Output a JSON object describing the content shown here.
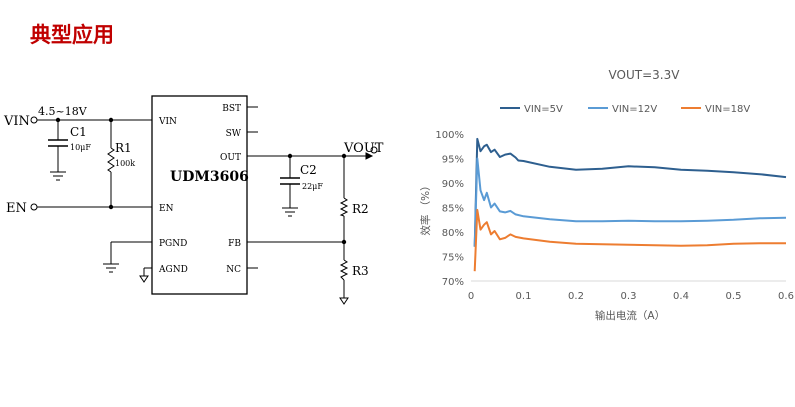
{
  "page": {
    "title": "典型应用"
  },
  "schematic": {
    "ports": {
      "vin": "VIN",
      "en": "EN",
      "vout": "VOUT"
    },
    "vin_range": "4.5~18V",
    "ic": {
      "name": "UDM3606",
      "pins_left": [
        "VIN",
        "EN",
        "PGND",
        "AGND"
      ],
      "pins_right": [
        "BST",
        "SW",
        "OUT",
        "FB",
        "NC"
      ]
    },
    "components": {
      "c1": {
        "name": "C1",
        "value": "10μF"
      },
      "r1": {
        "name": "R1",
        "value": "100k"
      },
      "c2": {
        "name": "C2",
        "value": "22μF"
      },
      "r2": {
        "name": "R2"
      },
      "r3": {
        "name": "R3"
      }
    }
  },
  "chart_data": {
    "type": "line",
    "title": "VOUT=3.3V",
    "xlabel": "输出电流（A）",
    "ylabel": "效率 （%）",
    "xlim": [
      0,
      0.6
    ],
    "ylim": [
      70,
      100
    ],
    "x_ticks": [
      "0",
      "0.1",
      "0.2",
      "0.3",
      "0.4",
      "0.5",
      "0.6"
    ],
    "y_ticks": [
      "70%",
      "75%",
      "80%",
      "85%",
      "90%",
      "95%",
      "100%"
    ],
    "legend_position": "top",
    "grid": false,
    "series": [
      {
        "name": "VIN=5V",
        "color": "#2e5f8f",
        "points": [
          [
            0.007,
            77
          ],
          [
            0.012,
            99
          ],
          [
            0.018,
            96.5
          ],
          [
            0.025,
            97.5
          ],
          [
            0.03,
            97.8
          ],
          [
            0.038,
            96.3
          ],
          [
            0.045,
            96.8
          ],
          [
            0.055,
            95.3
          ],
          [
            0.065,
            95.8
          ],
          [
            0.075,
            96
          ],
          [
            0.085,
            95.2
          ],
          [
            0.09,
            94.6
          ],
          [
            0.1,
            94.5
          ],
          [
            0.15,
            93.3
          ],
          [
            0.2,
            92.7
          ],
          [
            0.25,
            92.9
          ],
          [
            0.3,
            93.4
          ],
          [
            0.35,
            93.2
          ],
          [
            0.4,
            92.7
          ],
          [
            0.45,
            92.5
          ],
          [
            0.5,
            92.2
          ],
          [
            0.55,
            91.8
          ],
          [
            0.6,
            91.2
          ]
        ]
      },
      {
        "name": "VIN=12V",
        "color": "#5a9bd5",
        "points": [
          [
            0.007,
            77
          ],
          [
            0.012,
            95
          ],
          [
            0.018,
            88.5
          ],
          [
            0.025,
            86.5
          ],
          [
            0.03,
            88
          ],
          [
            0.038,
            85
          ],
          [
            0.045,
            85.8
          ],
          [
            0.055,
            84.2
          ],
          [
            0.065,
            84
          ],
          [
            0.075,
            84.3
          ],
          [
            0.085,
            83.6
          ],
          [
            0.1,
            83.2
          ],
          [
            0.15,
            82.6
          ],
          [
            0.2,
            82.2
          ],
          [
            0.25,
            82.2
          ],
          [
            0.3,
            82.3
          ],
          [
            0.35,
            82.2
          ],
          [
            0.4,
            82.2
          ],
          [
            0.45,
            82.3
          ],
          [
            0.5,
            82.5
          ],
          [
            0.55,
            82.8
          ],
          [
            0.6,
            82.9
          ]
        ]
      },
      {
        "name": "VIN=18V",
        "color": "#ed7d31",
        "points": [
          [
            0.007,
            72
          ],
          [
            0.012,
            84.5
          ],
          [
            0.018,
            80.5
          ],
          [
            0.025,
            81.5
          ],
          [
            0.03,
            82
          ],
          [
            0.038,
            79.5
          ],
          [
            0.045,
            80.2
          ],
          [
            0.055,
            78.5
          ],
          [
            0.065,
            78.8
          ],
          [
            0.075,
            79.5
          ],
          [
            0.085,
            79
          ],
          [
            0.1,
            78.7
          ],
          [
            0.15,
            78
          ],
          [
            0.2,
            77.6
          ],
          [
            0.25,
            77.5
          ],
          [
            0.3,
            77.4
          ],
          [
            0.35,
            77.3
          ],
          [
            0.4,
            77.2
          ],
          [
            0.45,
            77.3
          ],
          [
            0.5,
            77.6
          ],
          [
            0.55,
            77.7
          ],
          [
            0.6,
            77.7
          ]
        ]
      }
    ]
  }
}
